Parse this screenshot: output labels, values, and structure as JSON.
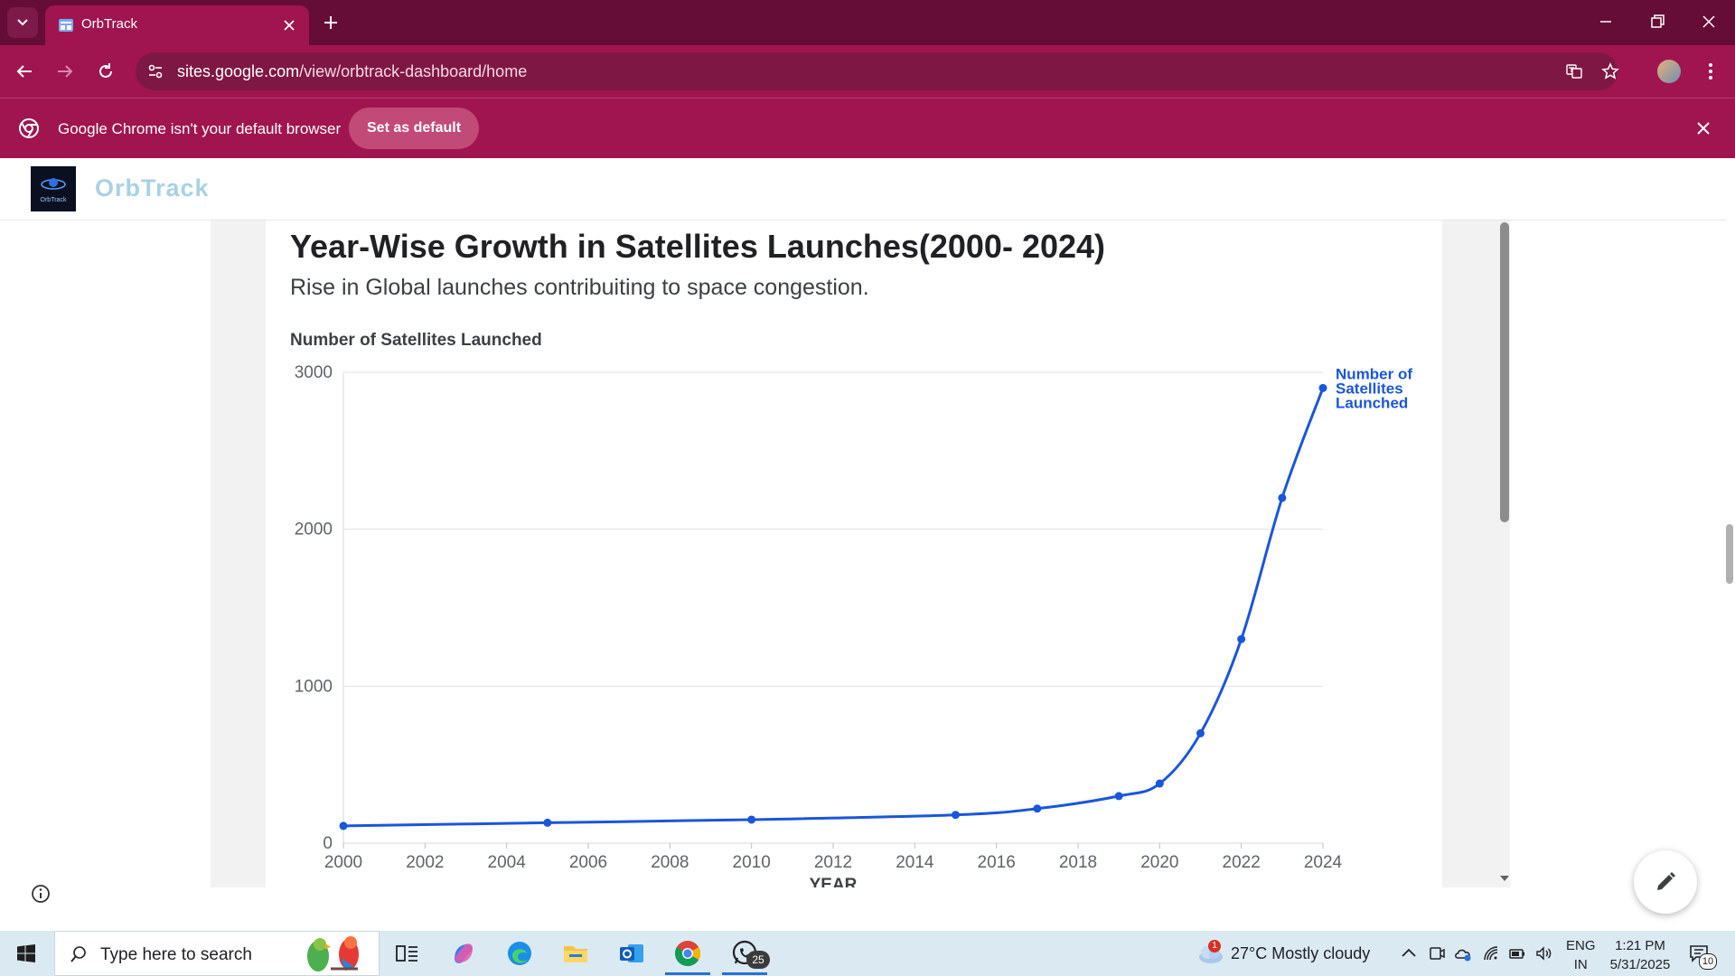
{
  "browser": {
    "tab_title": "OrbTrack",
    "url_host": "sites.google.com",
    "url_path": "/view/orbtrack-dashboard/home",
    "infobar_text": "Google Chrome isn't your default browser",
    "set_default_label": "Set as default",
    "theme_color": "#a0154f"
  },
  "site": {
    "name": "OrbTrack",
    "logo_text": "OrbTrack"
  },
  "chart_data": {
    "type": "line",
    "title": "Year-Wise Growth in Satellites Launches(2000- 2024)",
    "subtitle": "Rise in Global launches contribuiting to space congestion.",
    "ylabel": "Number of Satellites Launched",
    "xlabel": "YEAR",
    "xlim": [
      2000,
      2024
    ],
    "ylim": [
      0,
      3000
    ],
    "x_ticks": [
      2000,
      2002,
      2004,
      2006,
      2008,
      2010,
      2012,
      2014,
      2016,
      2018,
      2020,
      2022,
      2024
    ],
    "y_ticks": [
      0,
      1000,
      2000,
      3000
    ],
    "grid": true,
    "series": [
      {
        "name": "Number of Satellites Launched",
        "color": "#1a56db",
        "x": [
          2000,
          2005,
          2010,
          2015,
          2017,
          2019,
          2020,
          2021,
          2022,
          2023,
          2024
        ],
        "y": [
          110,
          130,
          150,
          180,
          220,
          300,
          380,
          700,
          1300,
          2200,
          2900
        ]
      }
    ]
  },
  "taskbar": {
    "search_placeholder": "Type here to search",
    "weather": "27°C  Mostly cloudy",
    "weather_alert_count": "1",
    "whatsapp_badge": "25",
    "lang_line1": "ENG",
    "lang_line2": "IN",
    "time": "1:21 PM",
    "date": "5/31/2025",
    "notification_count": "10"
  }
}
